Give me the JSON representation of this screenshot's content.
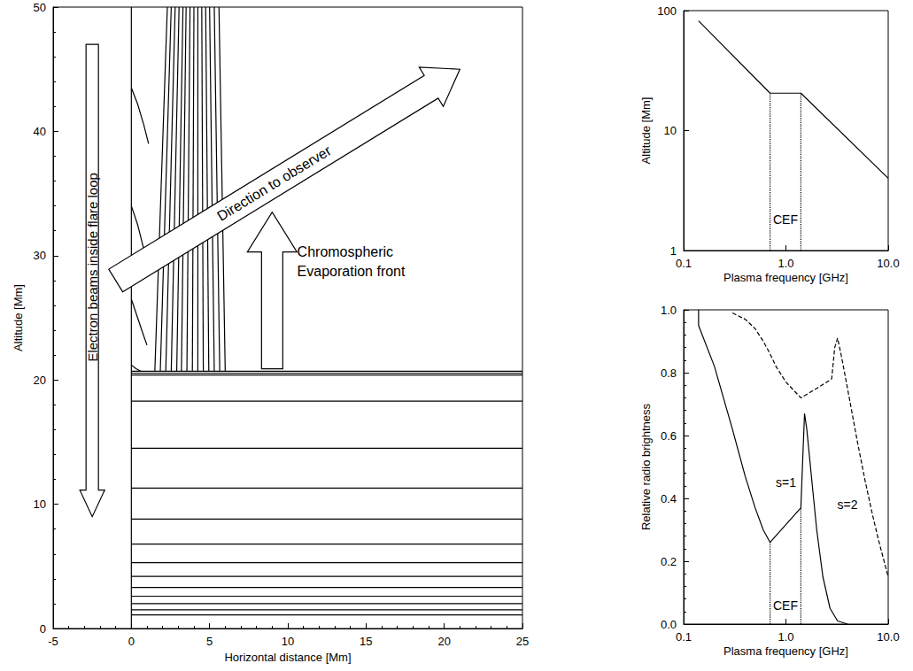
{
  "chart_data": [
    {
      "type": "line",
      "xlabel": "Horizontal distance [Mm]",
      "ylabel": "Altitude [Mm]",
      "xlim": [
        -5,
        25
      ],
      "xticks": [
        -5,
        0,
        5,
        10,
        15,
        20,
        25
      ],
      "ylim": [
        0,
        50
      ],
      "yticks": [
        0,
        10,
        20,
        30,
        40,
        50
      ],
      "grid": false,
      "color": "#000000",
      "annotations": [
        {
          "text": "Electron beams inside flare loop"
        },
        {
          "text": "Direction to observer"
        },
        {
          "text": "Chromospheric Evaporation front"
        }
      ],
      "series": [
        {
          "x": [
            0,
            0
          ],
          "values": [
            0,
            50
          ]
        },
        {
          "x": [
            0,
            25
          ],
          "values": [
            20.7,
            20.7
          ]
        },
        {
          "x": [
            0,
            25
          ],
          "values": [
            20.55,
            20.55
          ]
        },
        {
          "x": [
            0,
            25
          ],
          "values": [
            20.4,
            20.4
          ]
        },
        {
          "x": [
            0,
            25
          ],
          "values": [
            18.3,
            18.3
          ]
        },
        {
          "x": [
            0,
            25
          ],
          "values": [
            14.5,
            14.5
          ]
        },
        {
          "x": [
            0,
            25
          ],
          "values": [
            11.3,
            11.3
          ]
        },
        {
          "x": [
            0,
            25
          ],
          "values": [
            8.8,
            8.8
          ]
        },
        {
          "x": [
            0,
            25
          ],
          "values": [
            6.8,
            6.8
          ]
        },
        {
          "x": [
            0,
            25
          ],
          "values": [
            5.3,
            5.3
          ]
        },
        {
          "x": [
            0,
            25
          ],
          "values": [
            4.2,
            4.2
          ]
        },
        {
          "x": [
            0,
            25
          ],
          "values": [
            3.3,
            3.3
          ]
        },
        {
          "x": [
            0,
            25
          ],
          "values": [
            2.6,
            2.6
          ]
        },
        {
          "x": [
            0,
            25
          ],
          "values": [
            2.0,
            2.0
          ]
        },
        {
          "x": [
            0,
            25
          ],
          "values": [
            1.5,
            1.5
          ]
        },
        {
          "x": [
            0,
            25
          ],
          "values": [
            1.1,
            1.1
          ]
        },
        {
          "x": [
            1.5,
            2.3
          ],
          "values": [
            20.7,
            50
          ]
        },
        {
          "x": [
            1.85,
            2.55
          ],
          "values": [
            20.7,
            50
          ]
        },
        {
          "x": [
            2.2,
            2.8
          ],
          "values": [
            20.7,
            50
          ]
        },
        {
          "x": [
            2.55,
            3.05
          ],
          "values": [
            20.7,
            50
          ]
        },
        {
          "x": [
            2.9,
            3.3
          ],
          "values": [
            20.7,
            50
          ]
        },
        {
          "x": [
            3.2,
            3.5
          ],
          "values": [
            20.7,
            50
          ]
        },
        {
          "x": [
            3.55,
            3.75
          ],
          "values": [
            20.7,
            50
          ]
        },
        {
          "x": [
            3.9,
            4.0
          ],
          "values": [
            20.7,
            50
          ]
        },
        {
          "x": [
            4.25,
            4.25
          ],
          "values": [
            20.7,
            50
          ]
        },
        {
          "x": [
            4.6,
            4.5
          ],
          "values": [
            20.7,
            50
          ]
        },
        {
          "x": [
            4.95,
            4.75
          ],
          "values": [
            20.7,
            50
          ]
        },
        {
          "x": [
            5.3,
            5.0
          ],
          "values": [
            20.7,
            50
          ]
        },
        {
          "x": [
            5.65,
            5.3
          ],
          "values": [
            20.7,
            50
          ]
        },
        {
          "x": [
            6.0,
            5.6
          ],
          "values": [
            20.7,
            50
          ]
        },
        {
          "x": [
            0,
            0.4,
            0.8,
            1.1
          ],
          "values": [
            43.5,
            42.2,
            40.5,
            39.0
          ]
        },
        {
          "x": [
            0,
            0.4,
            0.8,
            1.0
          ],
          "values": [
            34.0,
            32.5,
            30.5,
            29.5
          ]
        },
        {
          "x": [
            0,
            0.4,
            0.8,
            1.0
          ],
          "values": [
            26.5,
            25.0,
            23.5,
            22.8
          ]
        },
        {
          "x": [
            0,
            0.3,
            0.6
          ],
          "values": [
            21.2,
            20.9,
            20.7
          ]
        }
      ]
    },
    {
      "type": "line",
      "log": true,
      "xlabel": "Plasma frequency [GHz]",
      "ylabel": "Altitude [Mm]",
      "xlim": [
        0.1,
        10
      ],
      "xticks": [
        0.1,
        {
          "value": 1,
          "label": "1.0"
        },
        {
          "value": 10,
          "label": "10.0"
        }
      ],
      "ylim": [
        1,
        100
      ],
      "yticks": [
        1,
        10,
        100
      ],
      "grid": false,
      "color": "#000000",
      "annotations": [
        {
          "text": "CEF",
          "x": 0.99,
          "y": 1.8
        }
      ],
      "series": [
        {
          "x": [
            0.14,
            0.7,
            1.4,
            10
          ],
          "values": [
            82,
            20.5,
            20.5,
            4
          ],
          "line_style": "solid"
        },
        {
          "x": [
            0.7,
            0.7
          ],
          "values": [
            1,
            20.5
          ],
          "line_style": "dotted"
        },
        {
          "x": [
            1.4,
            1.4
          ],
          "values": [
            1,
            20.5
          ],
          "line_style": "dotted"
        }
      ]
    },
    {
      "type": "line",
      "log": "x",
      "xlabel": "Plasma frequency [GHz]",
      "ylabel": "Relative radio brightness",
      "xlim": [
        0.1,
        10
      ],
      "xticks": [
        0.1,
        {
          "value": 1,
          "label": "1.0"
        },
        {
          "value": 10,
          "label": "10.0"
        }
      ],
      "ylim": [
        0,
        1
      ],
      "yticks": [
        {
          "value": 0,
          "label": "0.0"
        },
        0.2,
        0.4,
        0.6,
        0.8,
        {
          "value": 1,
          "label": "1.0"
        }
      ],
      "grid": false,
      "color": "#000000",
      "annotations": [
        {
          "text": "s=1",
          "x": 1.0,
          "y": 0.45
        },
        {
          "text": "s=2",
          "x": 4.0,
          "y": 0.38
        },
        {
          "text": "CEF",
          "x": 0.99,
          "y": 0.06
        }
      ],
      "series": [
        {
          "x": [
            0.14,
            0.14,
            0.2,
            0.3,
            0.4,
            0.5,
            0.6,
            0.7,
            1.4,
            1.45,
            1.52,
            1.6,
            1.8,
            2.0,
            2.3,
            2.7,
            3.2,
            4.0
          ],
          "values": [
            1.0,
            0.95,
            0.82,
            0.62,
            0.47,
            0.37,
            0.3,
            0.26,
            0.37,
            0.5,
            0.67,
            0.62,
            0.45,
            0.3,
            0.15,
            0.05,
            0.01,
            0.0
          ],
          "line_style": "solid"
        },
        {
          "x": [
            0.3,
            0.4,
            0.5,
            0.6,
            0.7,
            0.8,
            1.0,
            1.4,
            2.0,
            2.8,
            3.0,
            3.2,
            3.5,
            4.0,
            5.0,
            6.0,
            7.0,
            8.0,
            10.0
          ],
          "values": [
            0.99,
            0.97,
            0.94,
            0.9,
            0.86,
            0.82,
            0.77,
            0.72,
            0.75,
            0.78,
            0.88,
            0.91,
            0.85,
            0.75,
            0.58,
            0.45,
            0.35,
            0.27,
            0.15
          ],
          "line_style": "dashed"
        },
        {
          "x": [
            0.7,
            0.7
          ],
          "values": [
            0,
            0.26
          ],
          "line_style": "dotted"
        },
        {
          "x": [
            1.4,
            1.4
          ],
          "values": [
            0,
            0.37
          ],
          "line_style": "dotted"
        }
      ]
    }
  ]
}
